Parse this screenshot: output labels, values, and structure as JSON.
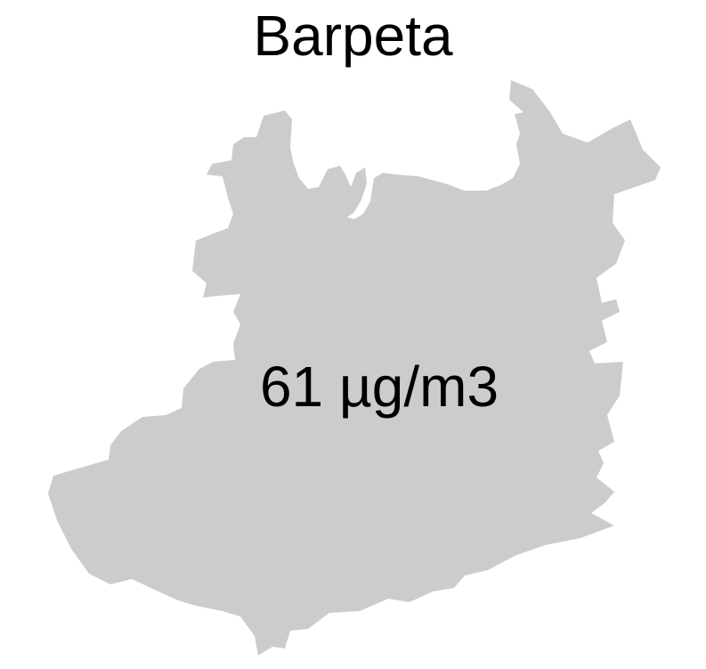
{
  "map": {
    "title": "Barpeta",
    "region_name": "Barpeta",
    "value_label": "61 µg/m3",
    "fill_color": "#cccccc",
    "background_color": "#ffffff"
  }
}
